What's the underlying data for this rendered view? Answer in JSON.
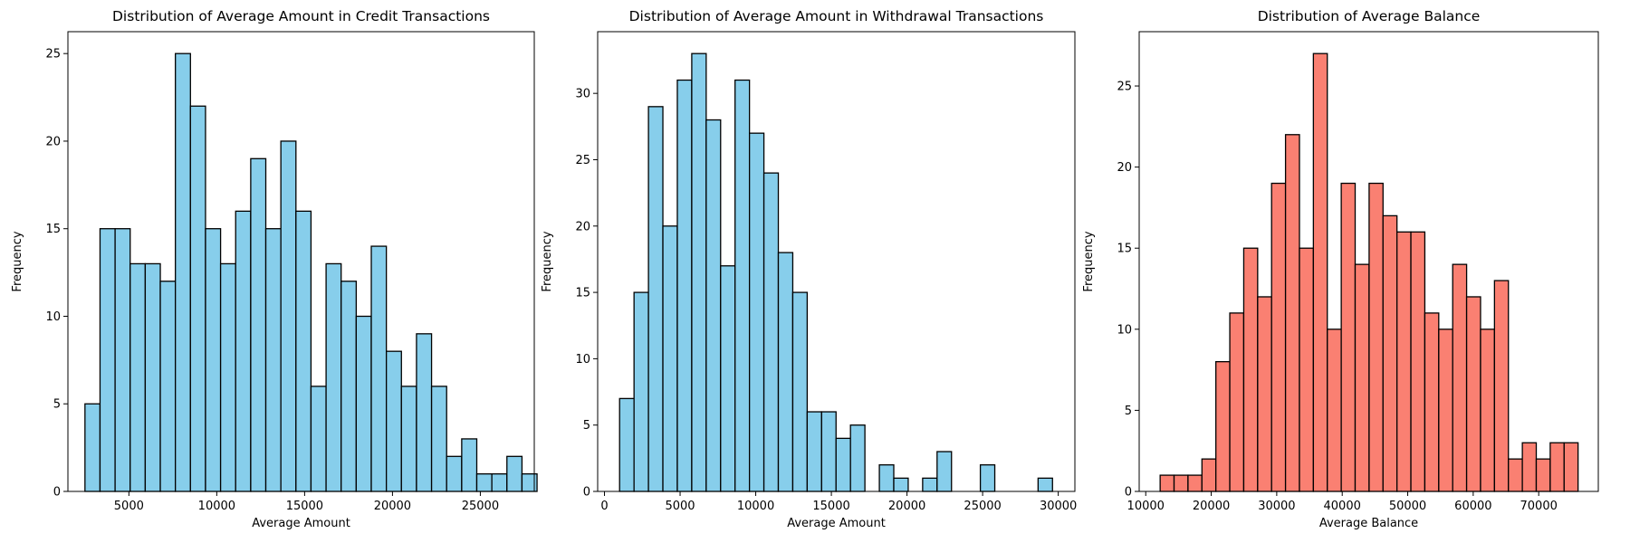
{
  "chart_data": [
    {
      "type": "histogram",
      "title": "Distribution of Average Amount in Credit Transactions",
      "xlabel": "Average Amount",
      "ylabel": "Frequency",
      "bar_color": "#87ceeb",
      "edge_color": "#000000",
      "xlim": [
        1530,
        28070
      ],
      "ylim": [
        0,
        26.25
      ],
      "xticks": [
        5000,
        10000,
        15000,
        20000,
        25000
      ],
      "yticks": [
        0,
        5,
        10,
        15,
        20,
        25
      ],
      "bin_start": 2500,
      "bin_width": 857.6,
      "counts": [
        5,
        15,
        15,
        13,
        13,
        12,
        25,
        22,
        15,
        13,
        16,
        19,
        15,
        20,
        16,
        6,
        13,
        12,
        10,
        14,
        8,
        6,
        9,
        6,
        2,
        3,
        1,
        1,
        2,
        1
      ]
    },
    {
      "type": "histogram",
      "title": "Distribution of Average Amount in Withdrawal Transactions",
      "xlabel": "Average Amount",
      "ylabel": "Frequency",
      "bar_color": "#87ceeb",
      "edge_color": "#000000",
      "xlim": [
        -450,
        31100
      ],
      "ylim": [
        0,
        34.65
      ],
      "xticks": [
        0,
        5000,
        10000,
        15000,
        20000,
        25000,
        30000
      ],
      "yticks": [
        0,
        5,
        10,
        15,
        20,
        25,
        30
      ],
      "bin_start": 1000,
      "bin_width": 954,
      "counts": [
        7,
        15,
        29,
        20,
        31,
        33,
        28,
        17,
        31,
        27,
        24,
        18,
        15,
        6,
        6,
        4,
        5,
        0,
        2,
        1,
        0,
        1,
        3,
        0,
        0,
        2,
        0,
        0,
        0,
        1
      ]
    },
    {
      "type": "histogram",
      "title": "Distribution of Average Balance",
      "xlabel": "Average Balance",
      "ylabel": "Frequency",
      "bar_color": "#fa8072",
      "edge_color": "#000000",
      "xlim": [
        9000,
        79100
      ],
      "ylim": [
        0,
        28.35
      ],
      "xticks": [
        10000,
        20000,
        30000,
        40000,
        50000,
        60000,
        70000
      ],
      "yticks": [
        0,
        5,
        10,
        15,
        20,
        25
      ],
      "bin_start": 12200,
      "bin_width": 2127,
      "counts": [
        1,
        1,
        1,
        2,
        8,
        11,
        15,
        12,
        19,
        22,
        15,
        27,
        10,
        19,
        14,
        19,
        17,
        16,
        16,
        11,
        10,
        14,
        12,
        10,
        13,
        2,
        3,
        2,
        3,
        3
      ]
    }
  ]
}
